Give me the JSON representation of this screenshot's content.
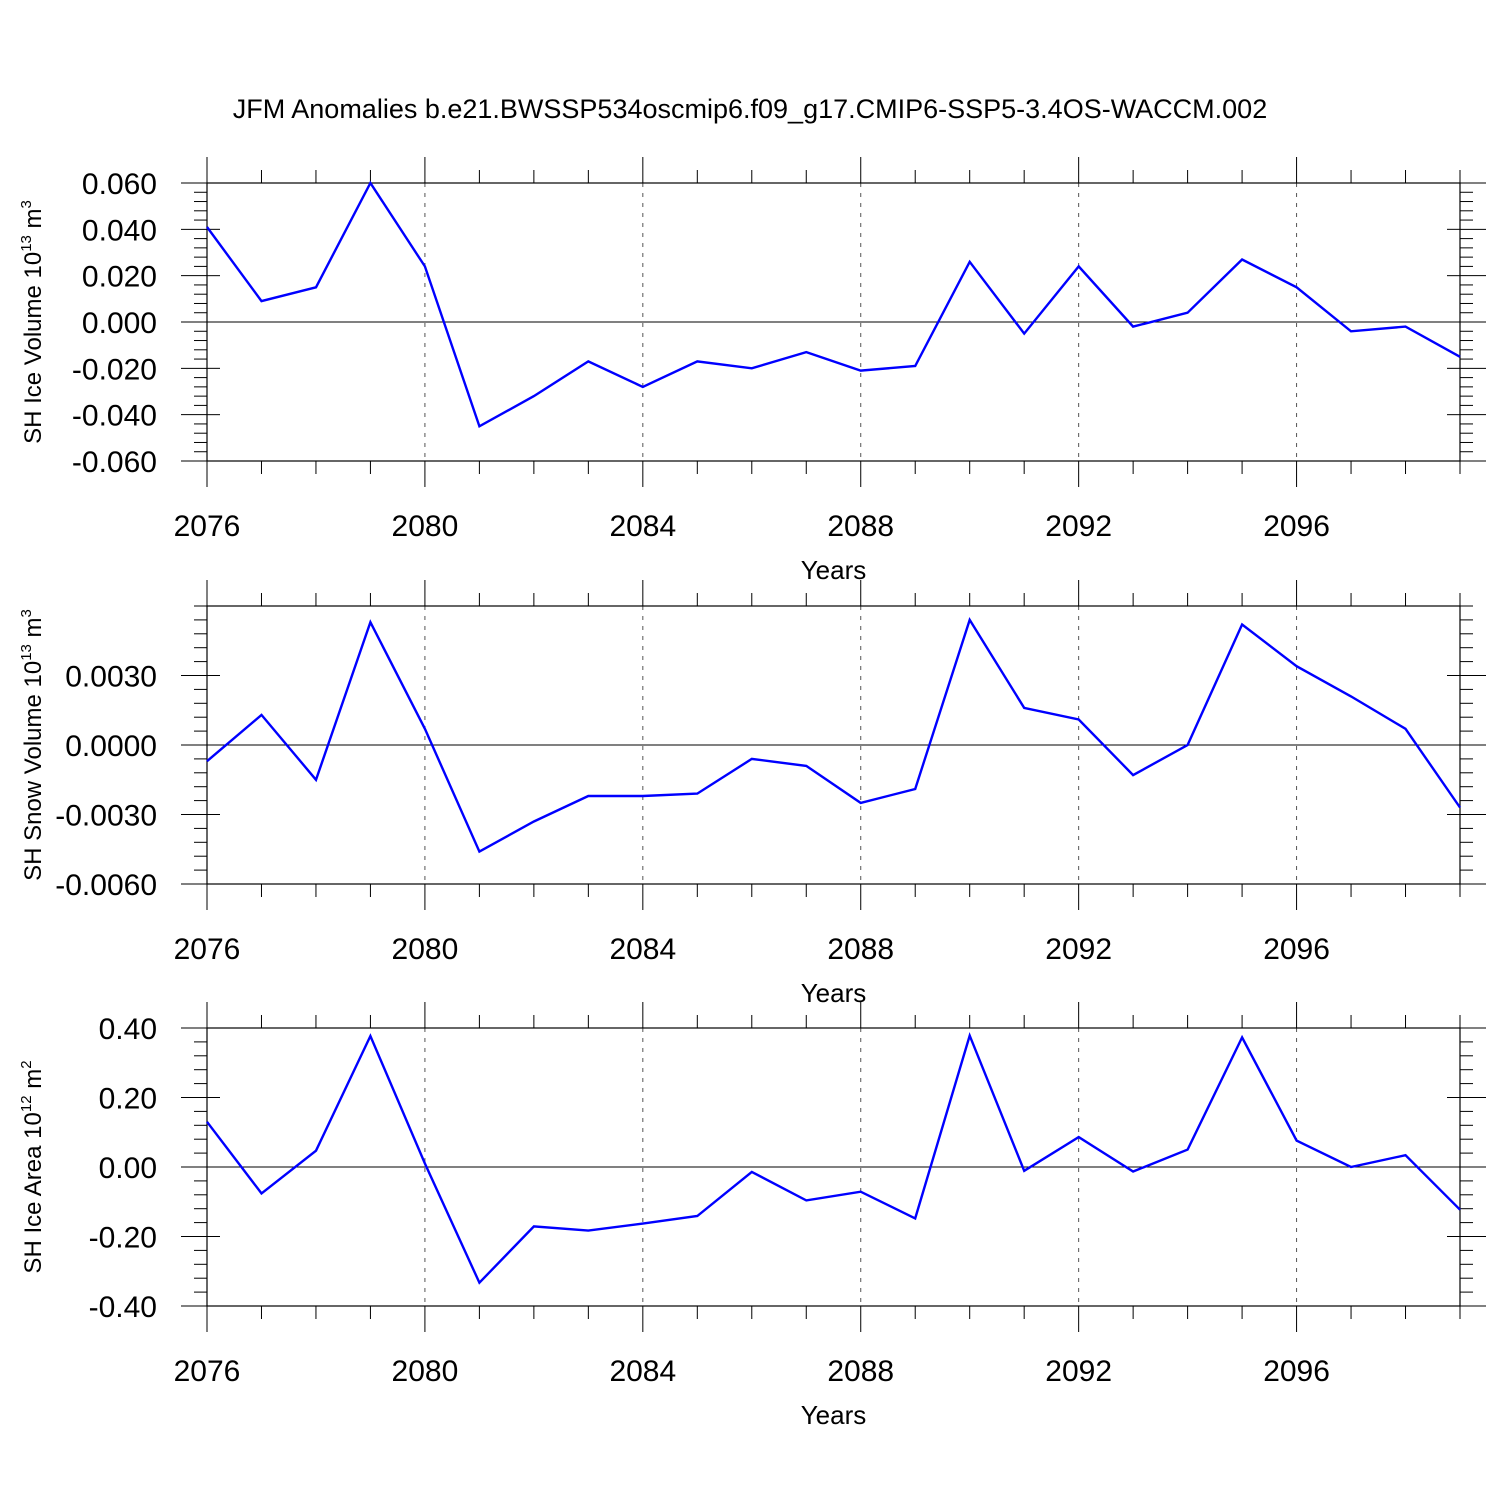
{
  "title": "JFM Anomalies b.e21.BWSSP534oscmip6.f09_g17.CMIP6-SSP5-3.4OS-WACCM.002",
  "chart_data": [
    {
      "type": "line",
      "xlabel": "Years",
      "ylabel": "SH Ice Volume 10",
      "ylabel_exp": "13",
      "ylabel_unit": " m",
      "ylabel_unit_exp": "3",
      "xlim": [
        2076,
        2099
      ],
      "ylim": [
        -0.06,
        0.06
      ],
      "x_ticks": [
        "2076",
        "2080",
        "2084",
        "2088",
        "2092",
        "2096"
      ],
      "y_ticks": [
        {
          "value": 0.06,
          "label": "0.060"
        },
        {
          "value": 0.04,
          "label": "0.040"
        },
        {
          "value": 0.02,
          "label": "0.020"
        },
        {
          "value": 0.0,
          "label": "0.000"
        },
        {
          "value": -0.02,
          "label": "-0.020"
        },
        {
          "value": -0.04,
          "label": "-0.040"
        },
        {
          "value": -0.06,
          "label": "-0.060"
        }
      ],
      "grid": "vertical dashed at labeled x ticks",
      "color": "#0000ff",
      "x": [
        2076,
        2077,
        2078,
        2079,
        2080,
        2081,
        2082,
        2083,
        2084,
        2085,
        2086,
        2087,
        2088,
        2089,
        2090,
        2091,
        2092,
        2093,
        2094,
        2095,
        2096,
        2097,
        2098,
        2099
      ],
      "values": [
        0.041,
        0.009,
        0.015,
        0.06,
        0.024,
        -0.045,
        -0.032,
        -0.017,
        -0.028,
        -0.017,
        -0.02,
        -0.013,
        -0.021,
        -0.019,
        0.026,
        -0.005,
        0.024,
        -0.002,
        0.004,
        0.027,
        0.015,
        -0.004,
        -0.002,
        -0.015
      ]
    },
    {
      "type": "line",
      "xlabel": "Years",
      "ylabel": "SH Snow Volume 10",
      "ylabel_exp": "13",
      "ylabel_unit": " m",
      "ylabel_unit_exp": "3",
      "xlim": [
        2076,
        2099
      ],
      "ylim": [
        -0.006,
        0.006
      ],
      "x_ticks": [
        "2076",
        "2080",
        "2084",
        "2088",
        "2092",
        "2096"
      ],
      "y_ticks": [
        {
          "value": 0.003,
          "label": "0.0030"
        },
        {
          "value": 0.0,
          "label": "0.0000"
        },
        {
          "value": -0.003,
          "label": "-0.0030"
        },
        {
          "value": -0.006,
          "label": "-0.0060"
        }
      ],
      "grid": "vertical dashed at labeled x ticks",
      "color": "#0000ff",
      "x": [
        2076,
        2077,
        2078,
        2079,
        2080,
        2081,
        2082,
        2083,
        2084,
        2085,
        2086,
        2087,
        2088,
        2089,
        2090,
        2091,
        2092,
        2093,
        2094,
        2095,
        2096,
        2097,
        2098,
        2099
      ],
      "values": [
        -0.0007,
        0.0013,
        -0.0015,
        0.0053,
        0.0007,
        -0.0046,
        -0.0033,
        -0.0022,
        -0.0022,
        -0.0021,
        -0.0006,
        -0.0009,
        -0.0025,
        -0.0019,
        0.0054,
        0.0016,
        0.0011,
        -0.0013,
        0.0,
        0.0052,
        0.0034,
        0.0021,
        0.0007,
        -0.0027
      ]
    },
    {
      "type": "line",
      "xlabel": "Years",
      "ylabel": "SH Ice Area 10",
      "ylabel_exp": "12",
      "ylabel_unit": " m",
      "ylabel_unit_exp": "2",
      "xlim": [
        2076,
        2099
      ],
      "ylim": [
        -0.4,
        0.4
      ],
      "x_ticks": [
        "2076",
        "2080",
        "2084",
        "2088",
        "2092",
        "2096"
      ],
      "y_ticks": [
        {
          "value": 0.4,
          "label": "0.40"
        },
        {
          "value": 0.2,
          "label": "0.20"
        },
        {
          "value": 0.0,
          "label": "0.00"
        },
        {
          "value": -0.2,
          "label": "-0.20"
        },
        {
          "value": -0.4,
          "label": "-0.40"
        }
      ],
      "grid": "vertical dashed at labeled x ticks",
      "color": "#0000ff",
      "x": [
        2076,
        2077,
        2078,
        2079,
        2080,
        2081,
        2082,
        2083,
        2084,
        2085,
        2086,
        2087,
        2088,
        2089,
        2090,
        2091,
        2092,
        2093,
        2094,
        2095,
        2096,
        2097,
        2098,
        2099
      ],
      "values": [
        0.13,
        -0.076,
        0.047,
        0.377,
        0.01,
        -0.333,
        -0.171,
        -0.183,
        -0.163,
        -0.141,
        -0.014,
        -0.096,
        -0.071,
        -0.148,
        0.378,
        -0.011,
        0.086,
        -0.013,
        0.05,
        0.373,
        0.076,
        0.0,
        0.034,
        -0.123
      ]
    }
  ]
}
